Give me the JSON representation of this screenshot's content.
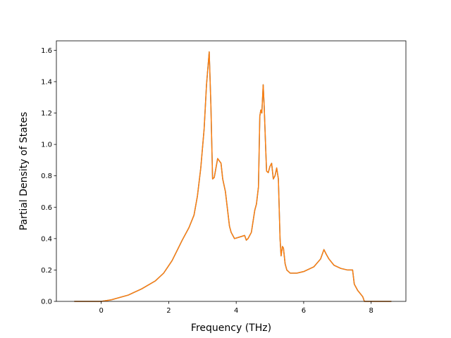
{
  "chart_data": {
    "type": "line",
    "title": "",
    "xlabel": "Frequency (THz)",
    "ylabel": "Partial Density of States",
    "xlim": [
      -1.33,
      9.03
    ],
    "ylim": [
      0.0,
      1.66
    ],
    "xticks": [
      0,
      2,
      4,
      6,
      8
    ],
    "xtick_labels": [
      "0",
      "2",
      "4",
      "6",
      "8"
    ],
    "yticks": [
      0.0,
      0.2,
      0.4,
      0.6,
      0.8,
      1.0,
      1.2,
      1.4,
      1.6
    ],
    "ytick_labels": [
      "0.0",
      "0.2",
      "0.4",
      "0.6",
      "0.8",
      "1.0",
      "1.2",
      "1.4",
      "1.6"
    ],
    "grid": false,
    "legend": "none",
    "series": [
      {
        "color": "#1f77b4",
        "x": [
          -0.8,
          0.0,
          0.3,
          0.8,
          1.2,
          1.6,
          1.85,
          2.1,
          2.4,
          2.6,
          2.75,
          2.85,
          2.95,
          3.05,
          3.12,
          3.2,
          3.25,
          3.3,
          3.35,
          3.45,
          3.55,
          3.6,
          3.68,
          3.8,
          3.85,
          3.95,
          4.1,
          4.25,
          4.3,
          4.35,
          4.45,
          4.55,
          4.6,
          4.66,
          4.7,
          4.73,
          4.76,
          4.8,
          4.83,
          4.87,
          4.9,
          4.95,
          5.0,
          5.05,
          5.1,
          5.15,
          5.2,
          5.25,
          5.3,
          5.33,
          5.37,
          5.4,
          5.45,
          5.5,
          5.6,
          5.8,
          6.0,
          6.3,
          6.5,
          6.6,
          6.67,
          6.75,
          6.9,
          7.1,
          7.3,
          7.45,
          7.5,
          7.6,
          7.75,
          7.8,
          7.9,
          8.2,
          8.6
        ],
        "y": [
          0.0,
          0.0,
          0.01,
          0.04,
          0.08,
          0.13,
          0.18,
          0.26,
          0.39,
          0.47,
          0.55,
          0.67,
          0.85,
          1.1,
          1.38,
          1.59,
          1.25,
          0.78,
          0.79,
          0.91,
          0.88,
          0.78,
          0.7,
          0.48,
          0.44,
          0.4,
          0.41,
          0.42,
          0.39,
          0.4,
          0.44,
          0.58,
          0.62,
          0.73,
          1.18,
          1.22,
          1.2,
          1.38,
          1.24,
          1.0,
          0.83,
          0.82,
          0.86,
          0.88,
          0.78,
          0.8,
          0.85,
          0.78,
          0.4,
          0.29,
          0.35,
          0.34,
          0.24,
          0.2,
          0.18,
          0.18,
          0.19,
          0.22,
          0.27,
          0.33,
          0.3,
          0.27,
          0.23,
          0.21,
          0.2,
          0.2,
          0.11,
          0.07,
          0.03,
          0.0,
          0.0,
          0.0,
          0.0
        ]
      },
      {
        "color": "#ff7f0e",
        "x": [
          -0.8,
          0.0,
          0.3,
          0.8,
          1.2,
          1.6,
          1.85,
          2.1,
          2.4,
          2.6,
          2.75,
          2.85,
          2.95,
          3.05,
          3.12,
          3.2,
          3.25,
          3.3,
          3.35,
          3.45,
          3.55,
          3.6,
          3.68,
          3.8,
          3.85,
          3.95,
          4.1,
          4.25,
          4.3,
          4.35,
          4.45,
          4.55,
          4.6,
          4.66,
          4.7,
          4.73,
          4.76,
          4.8,
          4.83,
          4.87,
          4.9,
          4.95,
          5.0,
          5.05,
          5.1,
          5.15,
          5.2,
          5.25,
          5.3,
          5.33,
          5.37,
          5.4,
          5.45,
          5.5,
          5.6,
          5.8,
          6.0,
          6.3,
          6.5,
          6.6,
          6.67,
          6.75,
          6.9,
          7.1,
          7.3,
          7.45,
          7.5,
          7.6,
          7.75,
          7.8,
          7.9,
          8.2,
          8.6
        ],
        "y": [
          0.0,
          0.0,
          0.01,
          0.04,
          0.08,
          0.13,
          0.18,
          0.26,
          0.39,
          0.47,
          0.55,
          0.67,
          0.85,
          1.1,
          1.38,
          1.59,
          1.25,
          0.78,
          0.79,
          0.91,
          0.88,
          0.78,
          0.7,
          0.48,
          0.44,
          0.4,
          0.41,
          0.42,
          0.39,
          0.4,
          0.44,
          0.58,
          0.62,
          0.73,
          1.18,
          1.22,
          1.2,
          1.38,
          1.24,
          1.0,
          0.83,
          0.82,
          0.86,
          0.88,
          0.78,
          0.8,
          0.85,
          0.78,
          0.4,
          0.29,
          0.35,
          0.34,
          0.24,
          0.2,
          0.18,
          0.18,
          0.19,
          0.22,
          0.27,
          0.33,
          0.3,
          0.27,
          0.23,
          0.21,
          0.2,
          0.2,
          0.11,
          0.07,
          0.03,
          0.0,
          0.0,
          0.0,
          0.0
        ]
      }
    ]
  }
}
